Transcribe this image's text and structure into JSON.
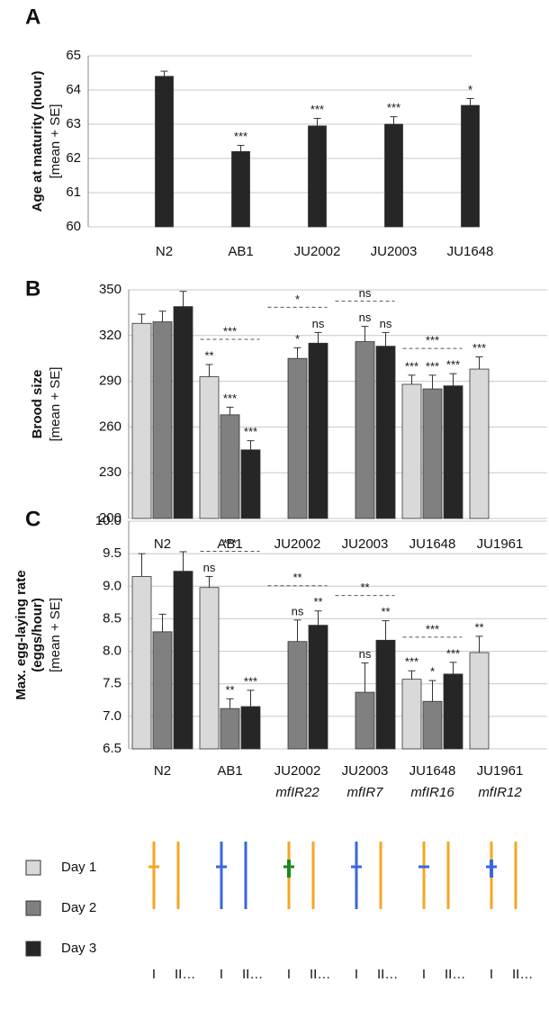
{
  "chart_data": [
    {
      "type": "bar",
      "title": "A",
      "ylabel": [
        "Age at maturity (hour)"
      ],
      "ylabel_note": "[mean + SE]",
      "categories": [
        "N2",
        "AB1",
        "JU2002",
        "JU2003",
        "JU1648"
      ],
      "values": [
        64.4,
        62.2,
        62.95,
        63.0,
        63.55
      ],
      "errors": [
        0.15,
        0.18,
        0.22,
        0.22,
        0.2
      ],
      "sig_labels": [
        null,
        "***",
        "***",
        "***",
        "*"
      ],
      "color": "#262626",
      "ylim": [
        60,
        65
      ],
      "yticks": [
        60,
        61,
        62,
        63,
        64,
        65
      ],
      "grid": true
    },
    {
      "type": "grouped-bar",
      "title": "B",
      "ylabel": [
        "Brood size"
      ],
      "ylabel_note": "[mean + SE]",
      "categories": [
        "N2",
        "AB1",
        "JU2002",
        "JU2003",
        "JU1648",
        "JU1961"
      ],
      "series": [
        {
          "name": "Day 1",
          "color": "#d9d9d9",
          "values": [
            328,
            293,
            null,
            null,
            288,
            298
          ],
          "errors": [
            6,
            8,
            null,
            null,
            6,
            8
          ],
          "sig_labels": [
            null,
            "**",
            null,
            null,
            "***",
            "***"
          ]
        },
        {
          "name": "Day 2",
          "color": "#808080",
          "values": [
            329,
            268,
            305,
            316,
            285,
            null
          ],
          "errors": [
            7,
            5,
            7,
            10,
            9,
            null
          ],
          "sig_labels": [
            null,
            "***",
            "*",
            "ns",
            "***",
            null
          ]
        },
        {
          "name": "Day 3",
          "color": "#262626",
          "values": [
            339,
            245,
            315,
            313,
            287,
            null
          ],
          "errors": [
            10,
            6,
            7,
            9,
            8,
            null
          ],
          "sig_labels": [
            null,
            "***",
            "ns",
            "ns",
            "***",
            null
          ]
        }
      ],
      "group_labels": [
        null,
        "***",
        "*",
        "ns",
        "***",
        null
      ],
      "ylim": [
        200,
        350
      ],
      "yticks": [
        200,
        230,
        260,
        290,
        320,
        350
      ],
      "grid": true
    },
    {
      "type": "grouped-bar",
      "title": "C",
      "ylabel": [
        "Max. egg-laying rate",
        "(eggs/hour)"
      ],
      "ylabel_note": "[mean + SE]",
      "categories": [
        "N2",
        "AB1",
        "JU2002",
        "JU2003",
        "JU1648",
        "JU1961"
      ],
      "subcategories": [
        null,
        null,
        "mfIR22",
        "mfIR7",
        "mfIR16",
        "mfIR12"
      ],
      "series": [
        {
          "name": "Day 1",
          "color": "#d9d9d9",
          "values": [
            9.15,
            8.98,
            null,
            null,
            7.57,
            7.98
          ],
          "errors": [
            0.35,
            0.17,
            null,
            null,
            0.13,
            0.25
          ],
          "sig_labels": [
            null,
            "ns",
            null,
            null,
            "***",
            "**"
          ]
        },
        {
          "name": "Day 2",
          "color": "#808080",
          "values": [
            8.3,
            7.12,
            8.15,
            7.37,
            7.23,
            null
          ],
          "errors": [
            0.27,
            0.15,
            0.33,
            0.45,
            0.32,
            null
          ],
          "sig_labels": [
            null,
            "**",
            "ns",
            "ns",
            "*",
            null
          ]
        },
        {
          "name": "Day 3",
          "color": "#262626",
          "values": [
            9.23,
            7.15,
            8.4,
            8.17,
            7.65,
            null
          ],
          "errors": [
            0.3,
            0.25,
            0.22,
            0.3,
            0.18,
            null
          ],
          "sig_labels": [
            null,
            "***",
            "**",
            "**",
            "***",
            null
          ]
        }
      ],
      "group_labels": [
        null,
        "***",
        "**",
        "**",
        "***",
        null
      ],
      "ylim": [
        6.5,
        10
      ],
      "yticks": [
        6.5,
        {
          "value": 7,
          "label": "7.0"
        },
        7.5,
        {
          "value": 8,
          "label": "8.0"
        },
        8.5,
        {
          "value": 9,
          "label": "9.0"
        },
        9.5,
        {
          "value": 10,
          "label": "10.0"
        }
      ],
      "grid": true
    }
  ],
  "genotypes": [
    {
      "chromosomes": [
        "I",
        "II…"
      ]
    },
    {
      "chromosomes": [
        "I",
        "II…"
      ]
    },
    {
      "chromosomes": [
        "I",
        "II…"
      ]
    },
    {
      "chromosomes": [
        "I",
        "II…"
      ]
    },
    {
      "chromosomes": [
        "I",
        "II…"
      ]
    },
    {
      "chromosomes": [
        "I",
        "II…"
      ]
    }
  ]
}
